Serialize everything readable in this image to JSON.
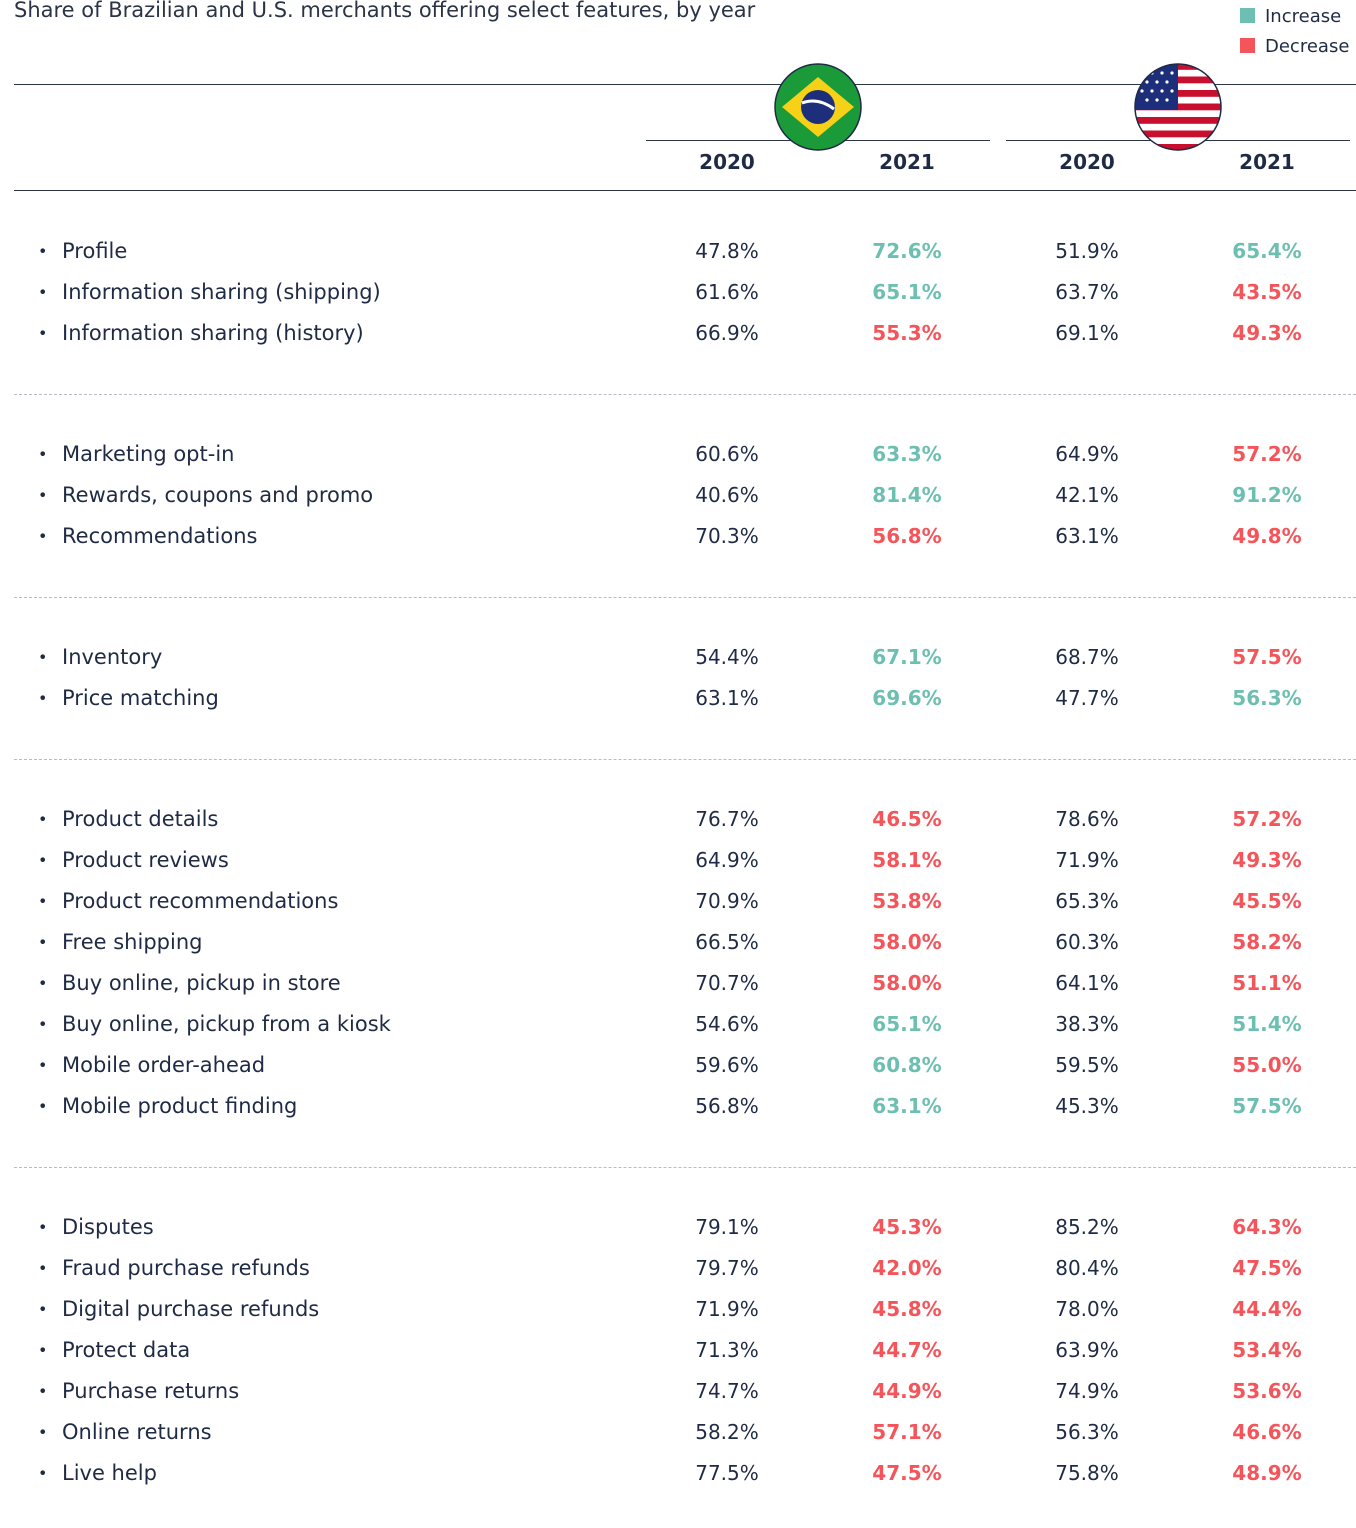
{
  "title": "Share of Brazilian and U.S. merchants offering select features, by year",
  "legend": [
    {
      "label": "Increase",
      "color": "#6cbfb1"
    },
    {
      "label": "Decrease",
      "color": "#f4555a"
    }
  ],
  "table": {
    "columns": [
      "2020",
      "2021",
      "2020",
      "2021"
    ],
    "groups": [
      {
        "rows": [
          {
            "label": "Profile",
            "values": [
              "47.8%",
              "72.6%",
              "51.9%",
              "65.4%"
            ]
          },
          {
            "label": "Information sharing (shipping)",
            "values": [
              "61.6%",
              "65.1%",
              "63.7%",
              "43.5%"
            ]
          },
          {
            "label": "Information sharing (history)",
            "values": [
              "66.9%",
              "55.3%",
              "69.1%",
              "49.3%"
            ]
          }
        ]
      },
      {
        "rows": [
          {
            "label": "Marketing opt-in",
            "values": [
              "60.6%",
              "63.3%",
              "64.9%",
              "57.2%"
            ]
          },
          {
            "label": "Rewards, coupons and promo",
            "values": [
              "40.6%",
              "81.4%",
              "42.1%",
              "91.2%"
            ]
          },
          {
            "label": "Recommendations",
            "values": [
              "70.3%",
              "56.8%",
              "63.1%",
              "49.8%"
            ]
          }
        ]
      },
      {
        "rows": [
          {
            "label": "Inventory",
            "values": [
              "54.4%",
              "67.1%",
              "68.7%",
              "57.5%"
            ]
          },
          {
            "label": "Price matching",
            "values": [
              "63.1%",
              "69.6%",
              "47.7%",
              "56.3%"
            ]
          }
        ]
      },
      {
        "rows": [
          {
            "label": "Product details",
            "values": [
              "76.7%",
              "46.5%",
              "78.6%",
              "57.2%"
            ]
          },
          {
            "label": "Product reviews",
            "values": [
              "64.9%",
              "58.1%",
              "71.9%",
              "49.3%"
            ]
          },
          {
            "label": "Product recommendations",
            "values": [
              "70.9%",
              "53.8%",
              "65.3%",
              "45.5%"
            ]
          },
          {
            "label": "Free shipping",
            "values": [
              "66.5%",
              "58.0%",
              "60.3%",
              "58.2%"
            ]
          },
          {
            "label": "Buy online, pickup in store",
            "values": [
              "70.7%",
              "58.0%",
              "64.1%",
              "51.1%"
            ]
          },
          {
            "label": "Buy online, pickup from a kiosk",
            "values": [
              "54.6%",
              "65.1%",
              "38.3%",
              "51.4%"
            ]
          },
          {
            "label": "Mobile order-ahead",
            "values": [
              "59.6%",
              "60.8%",
              "59.5%",
              "55.0%"
            ]
          },
          {
            "label": "Mobile product finding",
            "values": [
              "56.8%",
              "63.1%",
              "45.3%",
              "57.5%"
            ]
          }
        ]
      },
      {
        "rows": [
          {
            "label": "Disputes",
            "values": [
              "79.1%",
              "45.3%",
              "85.2%",
              "64.3%"
            ]
          },
          {
            "label": "Fraud purchase refunds",
            "values": [
              "79.7%",
              "42.0%",
              "80.4%",
              "47.5%"
            ]
          },
          {
            "label": "Digital purchase refunds",
            "values": [
              "71.9%",
              "45.8%",
              "78.0%",
              "44.4%"
            ]
          },
          {
            "label": "Protect data",
            "values": [
              "71.3%",
              "44.7%",
              "63.9%",
              "53.4%"
            ]
          },
          {
            "label": "Purchase returns",
            "values": [
              "74.7%",
              "44.9%",
              "74.9%",
              "53.6%"
            ]
          },
          {
            "label": "Online returns",
            "values": [
              "58.2%",
              "57.1%",
              "56.3%",
              "46.6%"
            ]
          },
          {
            "label": "Live help",
            "values": [
              "77.5%",
              "47.5%",
              "75.8%",
              "48.9%"
            ]
          }
        ]
      }
    ]
  }
}
